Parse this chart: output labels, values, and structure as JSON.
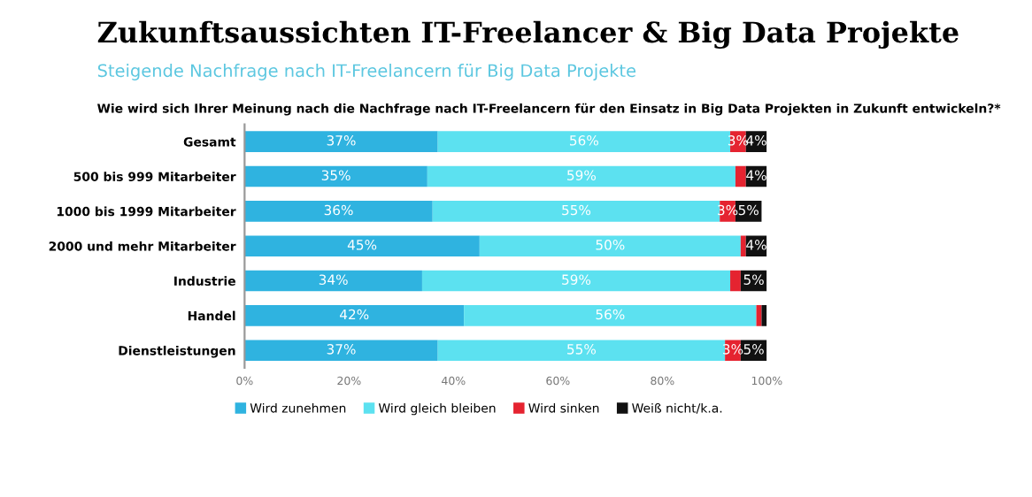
{
  "chart_data": {
    "type": "bar",
    "orientation": "horizontal",
    "stacked": true,
    "title": "Zukunftsaussichten IT-Freelancer & Big Data Projekte",
    "subtitle": "Steigende Nachfrage nach IT-Freelancern für Big Data Projekte",
    "annotations": [
      "Wie wird sich Ihrer Meinung nach die Nachfrage nach IT-Freelancern für den Einsatz in Big Data Projekten in Zukunft entwickeln?*"
    ],
    "categories": [
      "Gesamt",
      "500 bis 999 Mitarbeiter",
      "1000 bis 1999 Mitarbeiter",
      "2000 und mehr Mitarbeiter",
      "Industrie",
      "Handel",
      "Dienstleistungen"
    ],
    "series": [
      {
        "name": "Wird zunehmen",
        "color": "#2fb3e0",
        "values": [
          37,
          35,
          36,
          45,
          34,
          42,
          37
        ],
        "value_labels": [
          "37%",
          "35%",
          "36%",
          "45%",
          "34%",
          "42%",
          "37%"
        ]
      },
      {
        "name": "Wird gleich bleiben",
        "color": "#5ce1f0",
        "values": [
          56,
          59,
          55,
          50,
          59,
          56,
          55
        ],
        "value_labels": [
          "56%",
          "59%",
          "55%",
          "50%",
          "59%",
          "56%",
          "55%"
        ]
      },
      {
        "name": "Wird sinken",
        "color": "#e52330",
        "values": [
          3,
          2,
          3,
          1,
          2,
          1,
          3
        ],
        "value_labels": [
          "3%",
          null,
          "3%",
          null,
          null,
          null,
          "3%"
        ]
      },
      {
        "name": "Weiß nicht/k.a.",
        "color": "#111111",
        "values": [
          4,
          4,
          5,
          4,
          5,
          1,
          5
        ],
        "value_labels": [
          "4%",
          "4%",
          "5%",
          "4%",
          "5%",
          null,
          "5%"
        ]
      }
    ],
    "xlim": [
      0,
      100
    ],
    "xticks": [
      {
        "value": 0,
        "label": "0%"
      },
      {
        "value": 20,
        "label": "20%"
      },
      {
        "value": 40,
        "label": "40%"
      },
      {
        "value": 60,
        "label": "60%"
      },
      {
        "value": 80,
        "label": "80%"
      },
      {
        "value": 100,
        "label": "100%"
      }
    ],
    "grid": false,
    "legend": "bottom"
  }
}
